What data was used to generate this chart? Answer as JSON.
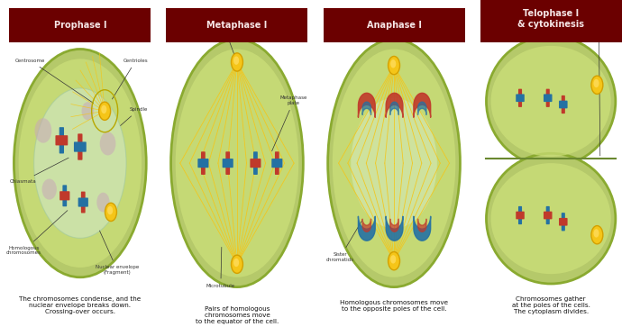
{
  "background_color": "#ffffff",
  "stages": [
    "Prophase I",
    "Metaphase I",
    "Anaphase I",
    "Telophase I\n& cytokinesis"
  ],
  "header_bg_color": "#6b0000",
  "header_text_color": "#f5e6e6",
  "cell_outer_color": "#b5c96a",
  "cell_outer_edge": "#8aaa30",
  "cell_inner_color": "#cde07a",
  "cell_nuc_color": "#c8dfc0",
  "spindle_color": "#f5c518",
  "spindle_edge": "#d4a000",
  "chr_red": "#c0392b",
  "chr_blue": "#2471a3",
  "pink_blob": "#c9a0b0",
  "descriptions": [
    "The chromosomes condense, and the\nnuclear envelope breaks down.\nCrossing-over occurs.",
    "Pairs of homologous\nchromosomes move\nto the equator of the cell.",
    "Homologous chromosomes move\nto the opposite poles of the cell.",
    "Chromosomes gather\nat the poles of the cells.\nThe cytoplasm divides."
  ]
}
